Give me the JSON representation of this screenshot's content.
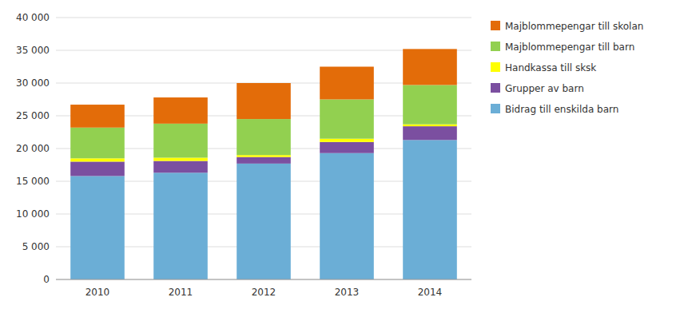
{
  "chart_data": {
    "type": "bar",
    "stacked": true,
    "grid": true,
    "legend": "right",
    "categories": [
      "2010",
      "2011",
      "2012",
      "2013",
      "2014"
    ],
    "series": [
      {
        "name": "Bidrag till enskilda barn",
        "color": "#6baed6",
        "values": [
          15800,
          16300,
          17700,
          19300,
          21300
        ]
      },
      {
        "name": "Grupper av barn",
        "color": "#7b4fa0",
        "values": [
          2200,
          1800,
          1000,
          1700,
          2100
        ]
      },
      {
        "name": "Handkassa till sksk",
        "color": "#ffff00",
        "values": [
          500,
          500,
          300,
          500,
          300
        ]
      },
      {
        "name": "Majblommepengar till barn",
        "color": "#92d050",
        "values": [
          4700,
          5200,
          5500,
          6000,
          6000
        ]
      },
      {
        "name": "Majblommepengar till skolan",
        "color": "#e36c09",
        "values": [
          3500,
          4000,
          5500,
          5000,
          5500
        ]
      }
    ],
    "ylim": [
      0,
      40000
    ],
    "yticks": [
      0,
      {
        "value": 5000,
        "label": "5 000"
      },
      {
        "value": 10000,
        "label": "10 000"
      },
      {
        "value": 15000,
        "label": "15 000"
      },
      {
        "value": 20000,
        "label": "20 000"
      },
      {
        "value": 25000,
        "label": "25 000"
      },
      {
        "value": 30000,
        "label": "30 000"
      },
      {
        "value": 35000,
        "label": "35 000"
      },
      {
        "value": 40000,
        "label": "40 000"
      }
    ]
  }
}
